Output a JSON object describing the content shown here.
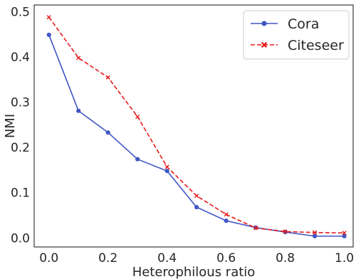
{
  "chart_data": {
    "type": "line",
    "title": "",
    "xlabel": "Heterophilous ratio",
    "ylabel": "NMI",
    "xlim": [
      -0.05,
      1.03
    ],
    "ylim": [
      -0.02,
      0.515
    ],
    "xticks": [
      0.0,
      0.2,
      0.4,
      0.6,
      0.8,
      1.0
    ],
    "xtick_labels": [
      "0.0",
      "0.2",
      "0.4",
      "0.6",
      "0.8",
      "1.0"
    ],
    "yticks": [
      0.0,
      0.1,
      0.2,
      0.3,
      0.4,
      0.5
    ],
    "ytick_labels": [
      "0.0",
      "0.1",
      "0.2",
      "0.3",
      "0.4",
      "0.5"
    ],
    "grid": false,
    "legend_position": "top-right",
    "x": [
      0.0,
      0.1,
      0.2,
      0.3,
      0.4,
      0.5,
      0.6,
      0.7,
      0.8,
      0.9,
      1.0
    ],
    "series": [
      {
        "name": "Cora",
        "color": "#4056c4",
        "line_style": "solid",
        "marker": "circle",
        "values": [
          0.449,
          0.281,
          0.233,
          0.174,
          0.148,
          0.068,
          0.038,
          0.023,
          0.013,
          0.004,
          0.004
        ]
      },
      {
        "name": "Citeseer",
        "color": "#e8191b",
        "line_style": "dashed",
        "marker": "x",
        "values": [
          0.488,
          0.398,
          0.355,
          0.268,
          0.157,
          0.093,
          0.052,
          0.022,
          0.014,
          0.012,
          0.011
        ]
      }
    ]
  }
}
